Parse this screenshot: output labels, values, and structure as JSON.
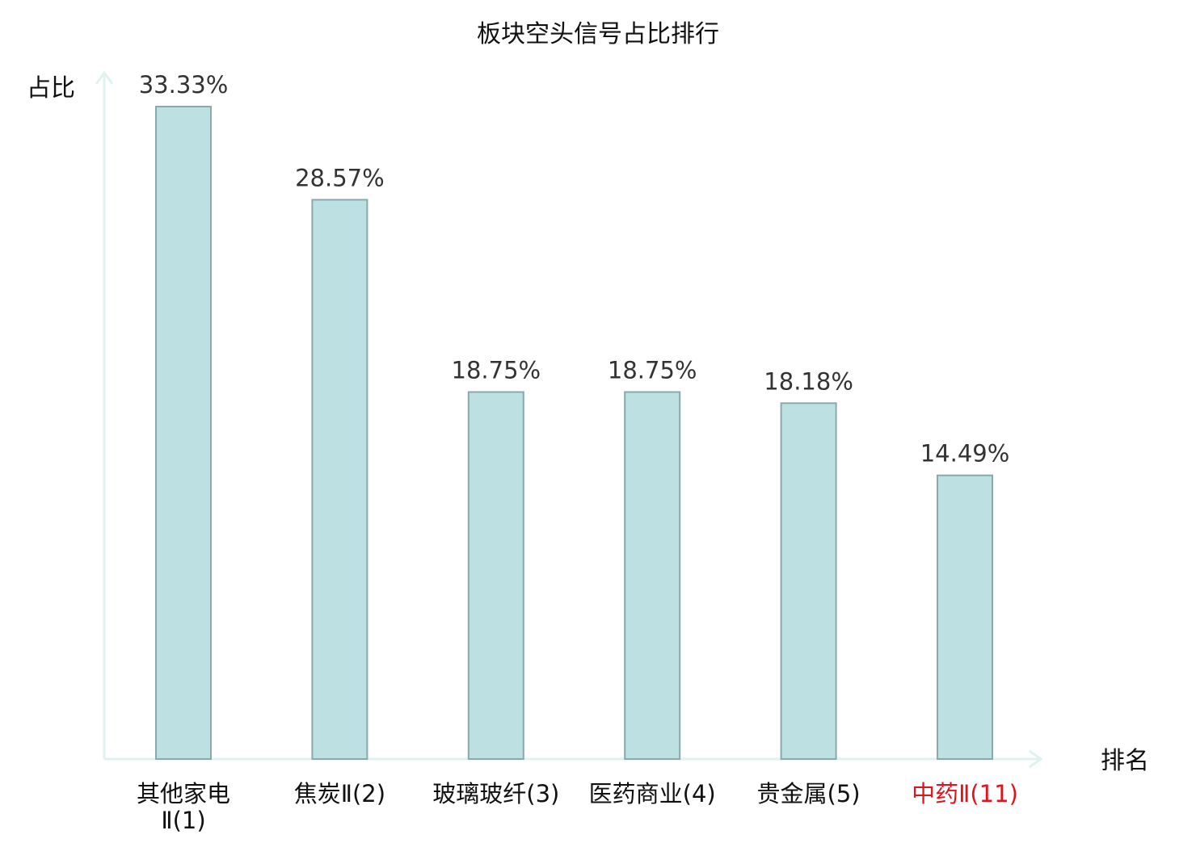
{
  "chart_data": {
    "type": "bar",
    "title": "板块空头信号占比排行",
    "xlabel": "排名",
    "ylabel": "占比",
    "categories": [
      [
        "其他家电",
        "Ⅱ(1)"
      ],
      [
        "焦炭Ⅱ(2)"
      ],
      [
        "玻璃玻纤(3)"
      ],
      [
        "医药商业(4)"
      ],
      [
        "贵金属(5)"
      ],
      [
        "中药Ⅱ(11)"
      ]
    ],
    "values": [
      33.33,
      28.57,
      18.75,
      18.75,
      18.18,
      14.49
    ],
    "value_labels": [
      "33.33%",
      "28.57%",
      "18.75%",
      "18.75%",
      "18.18%",
      "14.49%"
    ],
    "highlight_index": 5,
    "ylim": [
      0,
      35
    ],
    "grid": false,
    "legend": "none"
  },
  "colors": {
    "bar_fill": "#bde0e3",
    "bar_stroke": "#8aa9ab",
    "axis": "#e0f2ef",
    "text": "#111111",
    "value_label": "#333333",
    "highlight": "#e0141e"
  }
}
